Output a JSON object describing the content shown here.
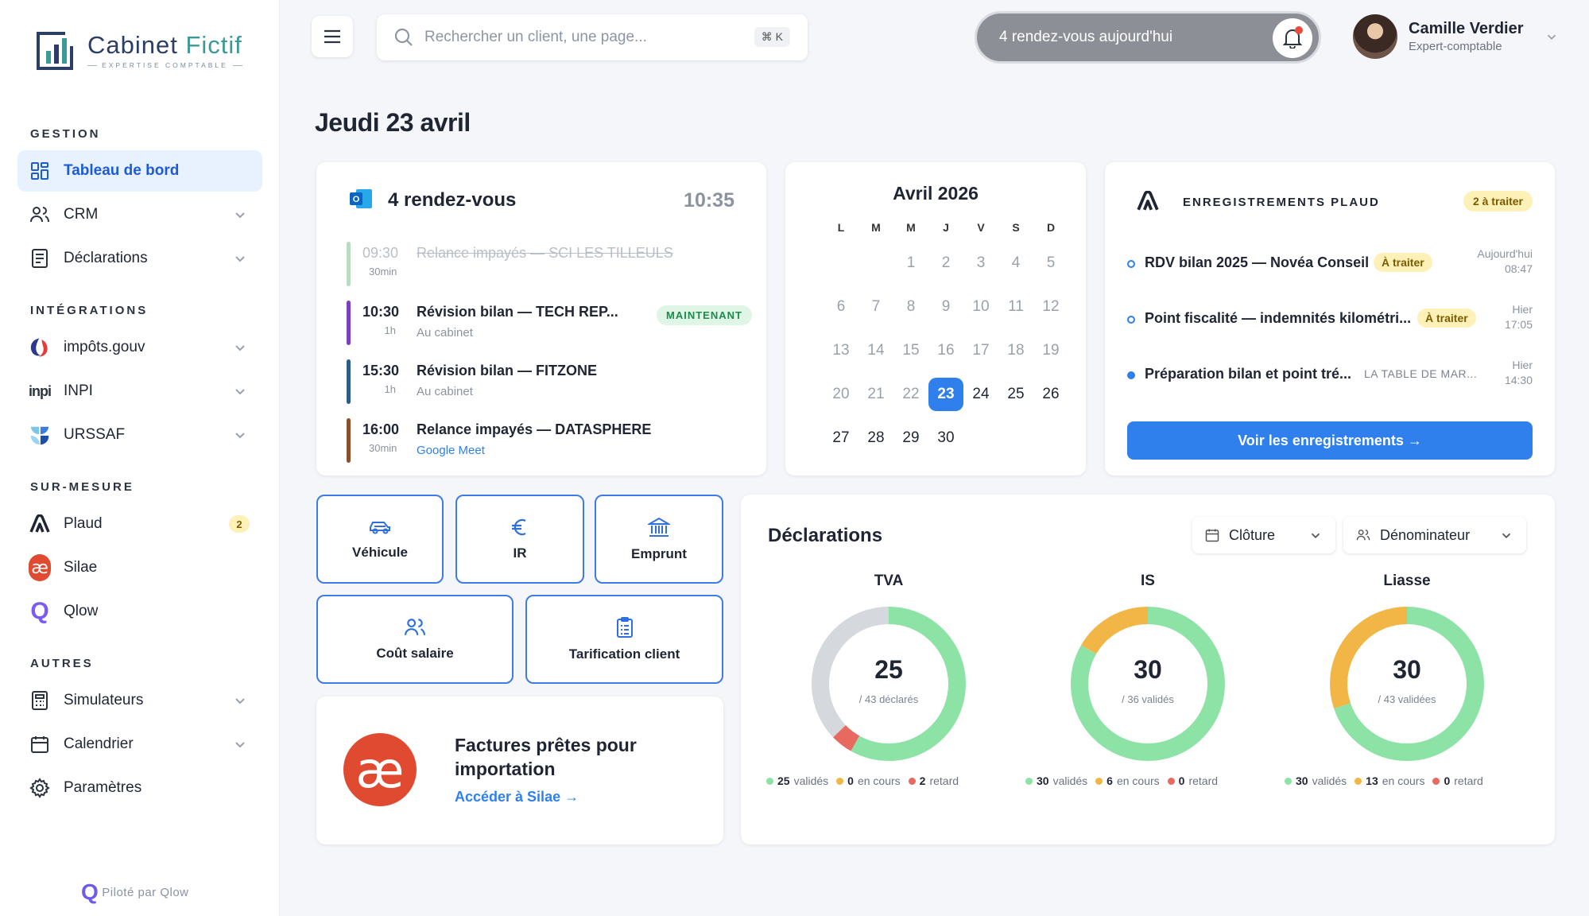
{
  "brand": {
    "name_a": "Cabinet ",
    "name_b": "Fictif",
    "sub": "EXPERTISE COMPTABLE"
  },
  "sidebar": {
    "sections": [
      "GESTION",
      "INTÉGRATIONS",
      "SUR-MESURE",
      "AUTRES"
    ],
    "items": [
      {
        "label": "Tableau de bord",
        "icon": "grid-icon"
      },
      {
        "label": "CRM",
        "icon": "users-icon"
      },
      {
        "label": "Déclarations",
        "icon": "document-icon"
      },
      {
        "label": "impôts.gouv",
        "icon": "impots-logo"
      },
      {
        "label": "INPI",
        "icon": "inpi-logo"
      },
      {
        "label": "URSSAF",
        "icon": "urssaf-logo"
      },
      {
        "label": "Plaud",
        "icon": "plaud-logo",
        "badge": "2"
      },
      {
        "label": "Silae",
        "icon": "silae-logo"
      },
      {
        "label": "Qlow",
        "icon": "qlow-logo"
      },
      {
        "label": "Simulateurs",
        "icon": "calculator-icon"
      },
      {
        "label": "Calendrier",
        "icon": "calendar-icon"
      },
      {
        "label": "Paramètres",
        "icon": "gear-icon"
      }
    ],
    "footer": "Piloté par Qlow"
  },
  "header": {
    "search_placeholder": "Rechercher un client, une page...",
    "shortcut": "⌘ K",
    "notif": "4 rendez-vous aujourd'hui",
    "user": {
      "name": "Camille Verdier",
      "role": "Expert-comptable"
    }
  },
  "page_title": "Jeudi 23 avril",
  "rdv": {
    "title": "4 rendez-vous",
    "time": "10:35",
    "now": "MAINTENANT",
    "items": [
      {
        "time": "09:30",
        "dur": "30min",
        "name": "Relance impayés — SCI LES TILLEULS",
        "sub": "",
        "color": "#b8dcc2"
      },
      {
        "time": "10:30",
        "dur": "1h",
        "name": "Révision bilan — TECH REP...",
        "sub": "Au cabinet",
        "color": "#7b3fc4"
      },
      {
        "time": "15:30",
        "dur": "1h",
        "name": "Révision bilan — FITZONE",
        "sub": "Au cabinet",
        "color": "#2e5b88"
      },
      {
        "time": "16:00",
        "dur": "30min",
        "name": "Relance impayés — DATASPHERE",
        "sub": "Google Meet",
        "color": "#8c4f2a"
      }
    ]
  },
  "calendar": {
    "title": "Avril 2026",
    "dow": [
      "L",
      "M",
      "M",
      "J",
      "V",
      "S",
      "D"
    ],
    "days": [
      "1",
      "2",
      "3",
      "4",
      "5",
      "6",
      "7",
      "8",
      "9",
      "10",
      "11",
      "12",
      "13",
      "14",
      "15",
      "16",
      "17",
      "18",
      "19",
      "20",
      "21",
      "22",
      "23",
      "24",
      "25",
      "26",
      "27",
      "28",
      "29",
      "30"
    ],
    "today": "23"
  },
  "plaud": {
    "title": "ENREGISTREMENTS PLAUD",
    "badge": "2 à traiter",
    "items": [
      {
        "name": "RDV bilan 2025 — Novéa Conseil",
        "tag": "À traiter",
        "when1": "Aujourd'hui",
        "when2": "08:47"
      },
      {
        "name": "Point fiscalité — indemnités kilométri...",
        "tag": "À traiter",
        "when1": "Hier",
        "when2": "17:05"
      },
      {
        "name": "Préparation bilan et point tré...",
        "sub": "LA TABLE DE MAR...",
        "when1": "Hier",
        "when2": "14:30"
      }
    ],
    "button": "Voir les enregistrements →"
  },
  "simulators": [
    {
      "label": "Véhicule",
      "icon": "car-icon"
    },
    {
      "label": "IR",
      "icon": "euro-icon"
    },
    {
      "label": "Emprunt",
      "icon": "bank-icon"
    },
    {
      "label": "Coût salaire",
      "icon": "people-icon"
    },
    {
      "label": "Tarification client",
      "icon": "clipboard-icon"
    }
  ],
  "silae": {
    "logo": "æ",
    "title": "Factures prêtes pour importation",
    "link": "Accéder à Silae →"
  },
  "declarations": {
    "title": "Déclarations",
    "filters": [
      "Clôture",
      "Dénominateur"
    ],
    "legend_labels": [
      "validés",
      "en cours",
      "retard"
    ]
  },
  "chart_data": [
    {
      "type": "pie",
      "title": "TVA",
      "center": "25",
      "subtitle": "/ 43 déclarés",
      "categories": [
        "validés",
        "en cours",
        "retard",
        "restant"
      ],
      "values": [
        25,
        0,
        2,
        16
      ]
    },
    {
      "type": "pie",
      "title": "IS",
      "center": "30",
      "subtitle": "/ 36 validés",
      "categories": [
        "validés",
        "en cours",
        "retard"
      ],
      "values": [
        30,
        6,
        0
      ]
    },
    {
      "type": "pie",
      "title": "Liasse",
      "center": "30",
      "subtitle": "/ 43 validées",
      "categories": [
        "validés",
        "en cours",
        "retard"
      ],
      "values": [
        30,
        13,
        0
      ]
    }
  ],
  "colors": {
    "green": "#8de2a6",
    "orange": "#f2b646",
    "red": "#e8695f",
    "grey": "#d5d8dd",
    "accent": "#2f80ed"
  }
}
